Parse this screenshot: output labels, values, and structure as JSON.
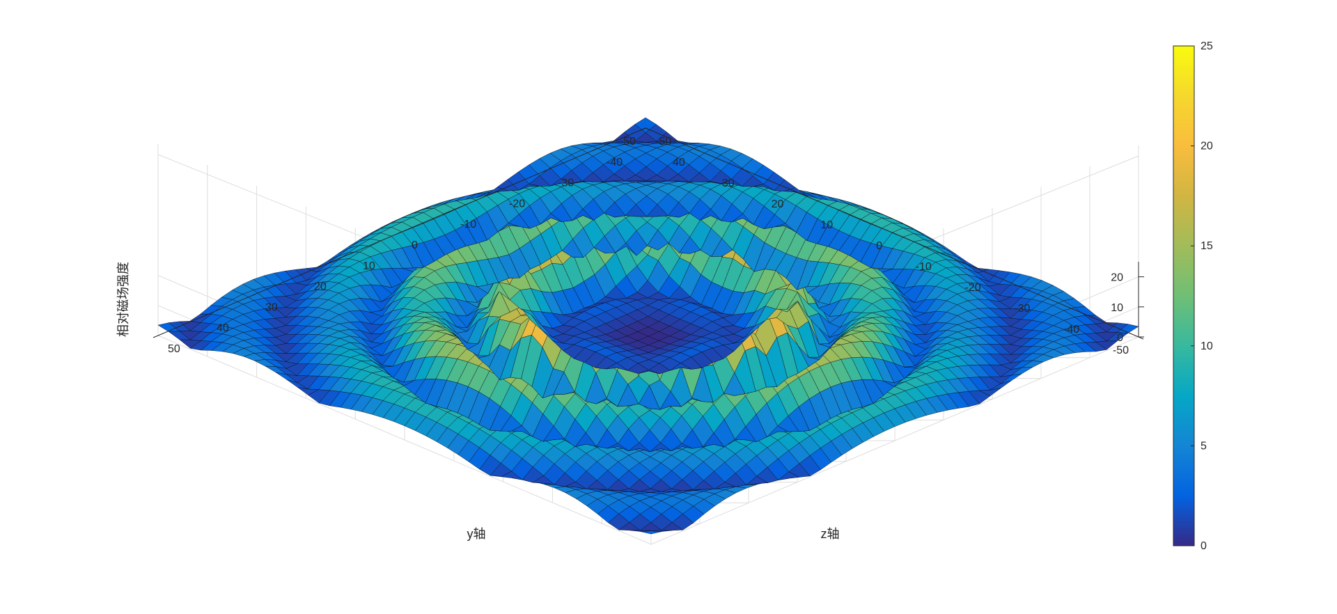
{
  "chart_data": {
    "type": "surface3d",
    "xlabel": "y轴",
    "ylabel": "z轴",
    "zlabel": "相对磁场强度",
    "x_range": [
      -50,
      50
    ],
    "y_range": [
      -50,
      50
    ],
    "z_range": [
      0,
      25
    ],
    "x_ticks": [
      "-50",
      "-40",
      "-30",
      "-20",
      "-10",
      "0",
      "10",
      "20",
      "30",
      "40",
      "50"
    ],
    "y_ticks": [
      "-50",
      "-40",
      "-30",
      "-20",
      "-10",
      "0",
      "10",
      "20",
      "30",
      "40",
      "50"
    ],
    "z_ticks": [
      "0",
      "10",
      "20"
    ],
    "colorbar": {
      "range": [
        0,
        25
      ],
      "ticks": [
        "0",
        "5",
        "10",
        "15",
        "20",
        "25"
      ],
      "colormap": "parula"
    },
    "grid": true,
    "contour_projection": true,
    "description_colors": {
      "low": "#352a87",
      "mid": "#0fa6c6",
      "high": "#f9fb0e"
    }
  }
}
